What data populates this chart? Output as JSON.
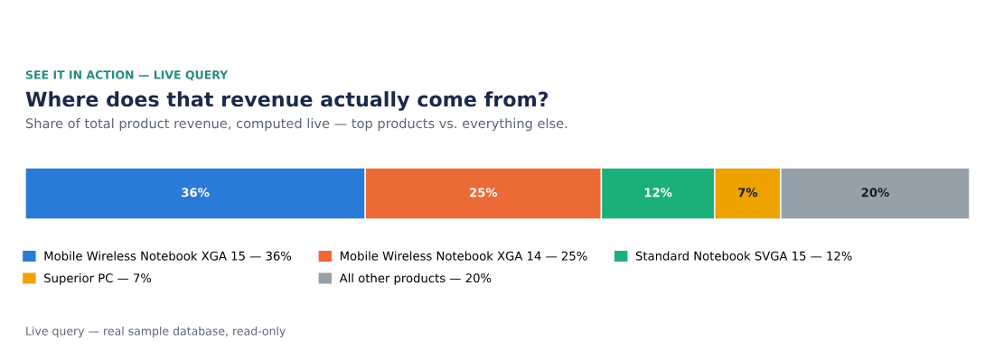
{
  "chart_data": {
    "type": "bar",
    "orientation": "horizontal",
    "stacked": true,
    "title": "Where does that revenue actually come from?",
    "subtitle": "Share of total product revenue, computed live — top products vs. everything else.",
    "categories": [
      null
    ],
    "legend": "bottom",
    "grid": false,
    "tick_labels": false,
    "series": [
      {
        "name": "Mobile Wireless Notebook XGA 15 — 36%",
        "color": "#2a7ad8",
        "values": [
          36
        ],
        "value_labels": [
          "36%"
        ]
      },
      {
        "name": "Mobile Wireless Notebook XGA 14 — 25%",
        "color": "#eb6a35",
        "values": [
          25
        ],
        "value_labels": [
          "25%"
        ]
      },
      {
        "name": "Standard Notebook SVGA 15 — 12%",
        "color": "#1bb07a",
        "values": [
          12
        ],
        "value_labels": [
          "12%"
        ]
      },
      {
        "name": "Superior PC — 7%",
        "color": "#eea200",
        "values": [
          7
        ],
        "value_labels": [
          "7%"
        ]
      },
      {
        "name": "All other products — 20%",
        "color": "#96a0a9",
        "values": [
          20
        ],
        "value_labels": [
          "20%"
        ]
      }
    ],
    "annotations": [
      "SEE IT IN ACTION — LIVE QUERY",
      "Live query — real sample database, read-only"
    ]
  }
}
